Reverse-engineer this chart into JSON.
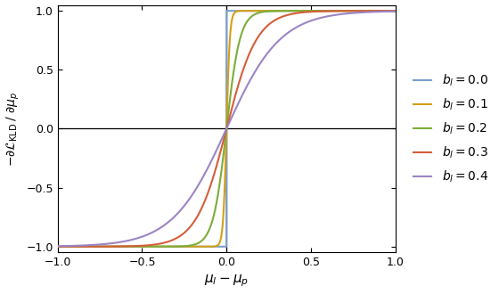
{
  "title": "",
  "xlabel": "$\\mu_l - \\mu_p$",
  "ylabel": "$-\\partial\\mathcal{L}_{\\mathrm{KLD}} \\;/\\; \\partial\\mu_p$",
  "xlim": [
    -1.0,
    1.0
  ],
  "ylim": [
    -1.05,
    1.05
  ],
  "xticks": [
    -1.0,
    -0.5,
    0.0,
    0.5,
    1.0
  ],
  "yticks": [
    -1.0,
    -0.5,
    0.0,
    0.5,
    1.0
  ],
  "b_values": [
    0.0,
    0.1,
    0.2,
    0.3,
    0.4
  ],
  "colors": [
    "#7b9fcc",
    "#d4a017",
    "#7cad3a",
    "#d45f3a",
    "#9b85c4"
  ],
  "background_color": "#ffffff",
  "linewidth": 1.5
}
